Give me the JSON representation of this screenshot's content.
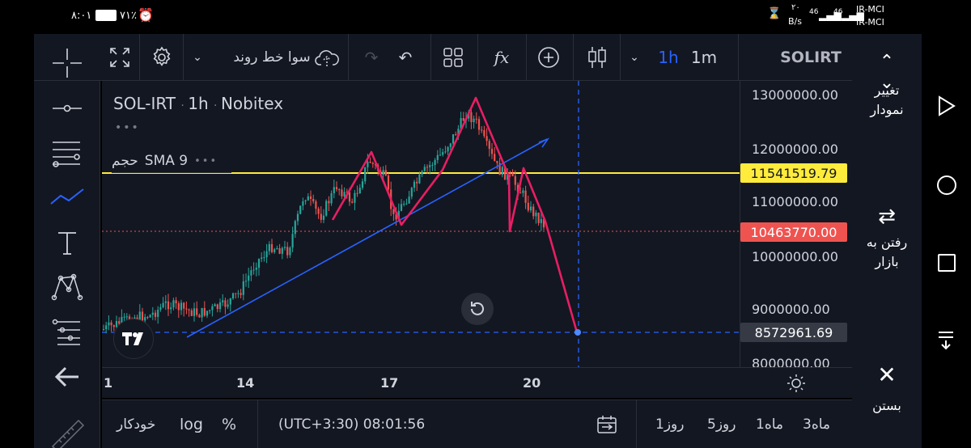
{
  "status": {
    "time": "۸:۰۱",
    "battery": "۷۱٪",
    "speed_value": "۲۰",
    "speed_unit": "B/s",
    "net1": "46",
    "net2": "46",
    "carrier1": "IR-MCI",
    "carrier2": "IR-MCI"
  },
  "toolbar": {
    "symbol": "SOLIRT",
    "interval_1m": "1m",
    "interval_1h": "1h",
    "fx": "fx",
    "trend_label": "سوا خط روند",
    "active_interval_color": "#2962ff"
  },
  "chart": {
    "legend_symbol": "SOL-IRT",
    "legend_interval": "1h",
    "legend_exchange": "Nobitex",
    "dots": "•••",
    "indicator": "SMA 9",
    "indicator_volume": "حجم",
    "price_levels": [
      "13000000.00",
      "12000000.00",
      "11000000.00",
      "10000000.00",
      "9000000.00",
      "8000000.00"
    ],
    "tag_yellow": "11541519.79",
    "tag_red": "10463770.00",
    "tag_crosshair": "8572961.69",
    "time_labels": [
      "1",
      "14",
      "17",
      "20"
    ],
    "colors": {
      "up": "#26a69a",
      "down": "#ef5350",
      "pattern": "#e91e63",
      "trend": "#2962ff",
      "level": "#ffeb3b"
    }
  },
  "bottom": {
    "ranges": [
      "3ماه",
      "1ماه",
      "5روز",
      "1روز"
    ],
    "clock": "(UTC+3:30) 08:01:56",
    "percent": "%",
    "log": "log",
    "auto": "خودکار"
  },
  "right_panel": {
    "change_chart": [
      "تغییر",
      "نمودار"
    ],
    "go_market": [
      "رفتن به",
      "بازار"
    ],
    "close": "بستن"
  }
}
